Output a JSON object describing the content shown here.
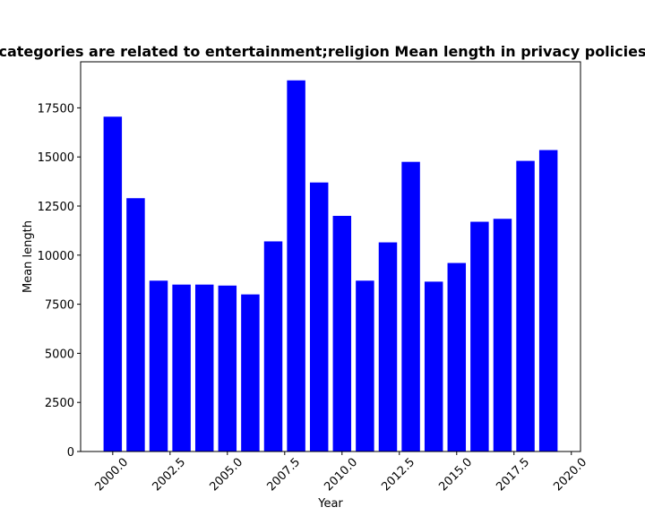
{
  "chart_data": {
    "type": "bar",
    "title": "categories are related to entertainment;religion Mean length in privacy policies",
    "xlabel": "Year",
    "ylabel": "Mean length",
    "x": [
      2000,
      2001,
      2002,
      2003,
      2004,
      2005,
      2006,
      2007,
      2008,
      2009,
      2010,
      2011,
      2012,
      2013,
      2014,
      2015,
      2016,
      2017,
      2018,
      2019
    ],
    "values": [
      17050,
      12900,
      8700,
      8500,
      8500,
      8450,
      8000,
      10700,
      18900,
      13700,
      12000,
      8700,
      10650,
      14750,
      8650,
      9600,
      11700,
      11850,
      14800,
      15350
    ],
    "xlim": [
      1998.6,
      2020.4
    ],
    "ylim": [
      0,
      19845
    ],
    "xticks": [
      2000,
      2002.5,
      2005,
      2007.5,
      2010,
      2012.5,
      2015,
      2017.5,
      2020
    ],
    "xtick_labels": [
      "2000.0",
      "2002.5",
      "2005.0",
      "2007.5",
      "2010.0",
      "2012.5",
      "2015.0",
      "2017.5",
      "2020.0"
    ],
    "yticks": [
      0,
      2500,
      5000,
      7500,
      10000,
      12500,
      15000,
      17500
    ],
    "ytick_labels": [
      "0",
      "2500",
      "5000",
      "7500",
      "10000",
      "12500",
      "15000",
      "17500"
    ],
    "bar_color": "#0000ff",
    "grid": false,
    "legend": "none"
  }
}
